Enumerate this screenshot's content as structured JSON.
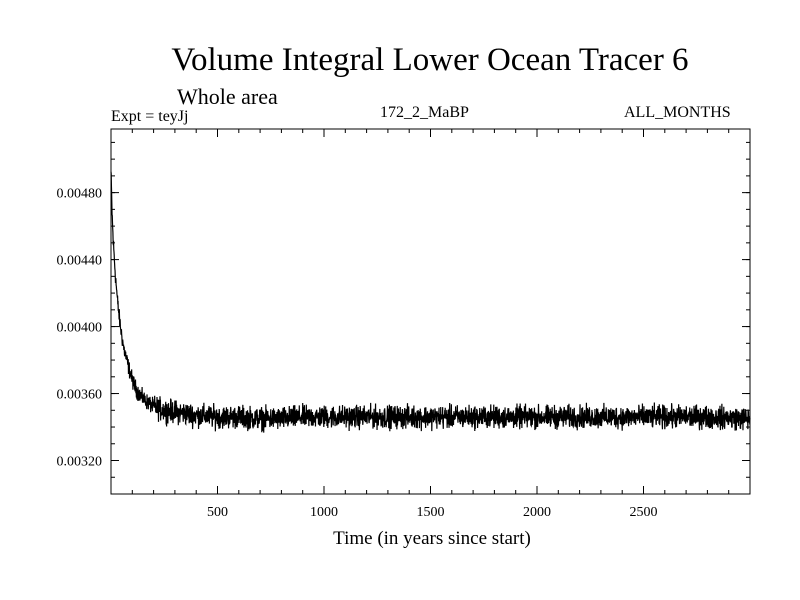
{
  "chart_data": {
    "type": "line",
    "title": "Volume Integral Lower Ocean Tracer 6",
    "subtitle": "Whole area",
    "left_label": "Expt = teyJj",
    "center_label": "172_2_MaBP",
    "right_label": "ALL_MONTHS",
    "xlabel": "Time (in years since start)",
    "ylabel": "",
    "xlim": [
      0,
      3000
    ],
    "ylim": [
      0.003,
      0.00518
    ],
    "x_ticks": [
      500,
      1000,
      1500,
      2000,
      2500
    ],
    "x_tick_labels": [
      "500",
      "1000",
      "1500",
      "2000",
      "2500"
    ],
    "y_ticks": [
      0.0032,
      0.0036,
      0.004,
      0.0044,
      0.0048
    ],
    "y_tick_labels": [
      "0.00320",
      "0.00360",
      "0.00400",
      "0.00440",
      "0.00480"
    ],
    "series": [
      {
        "name": "Lower Ocean Tracer 6",
        "color": "#000000",
        "x": [
          0,
          5,
          10,
          20,
          30,
          40,
          50,
          60,
          80,
          100,
          120,
          150,
          200,
          250,
          300,
          400,
          500,
          600,
          700,
          800,
          900,
          1000,
          1200,
          1400,
          1600,
          1800,
          2000,
          2200,
          2400,
          2600,
          2800,
          3000
        ],
        "values": [
          0.00492,
          0.00468,
          0.00452,
          0.00432,
          0.00416,
          0.00404,
          0.00395,
          0.00387,
          0.00377,
          0.00368,
          0.00362,
          0.00357,
          0.00352,
          0.0035,
          0.00349,
          0.00347,
          0.00346,
          0.00346,
          0.00345,
          0.00345,
          0.00346,
          0.00346,
          0.00346,
          0.00346,
          0.00346,
          0.00346,
          0.00346,
          0.00346,
          0.00346,
          0.00346,
          0.00346,
          0.00345
        ],
        "noise_amplitude": 0.0001
      }
    ]
  }
}
